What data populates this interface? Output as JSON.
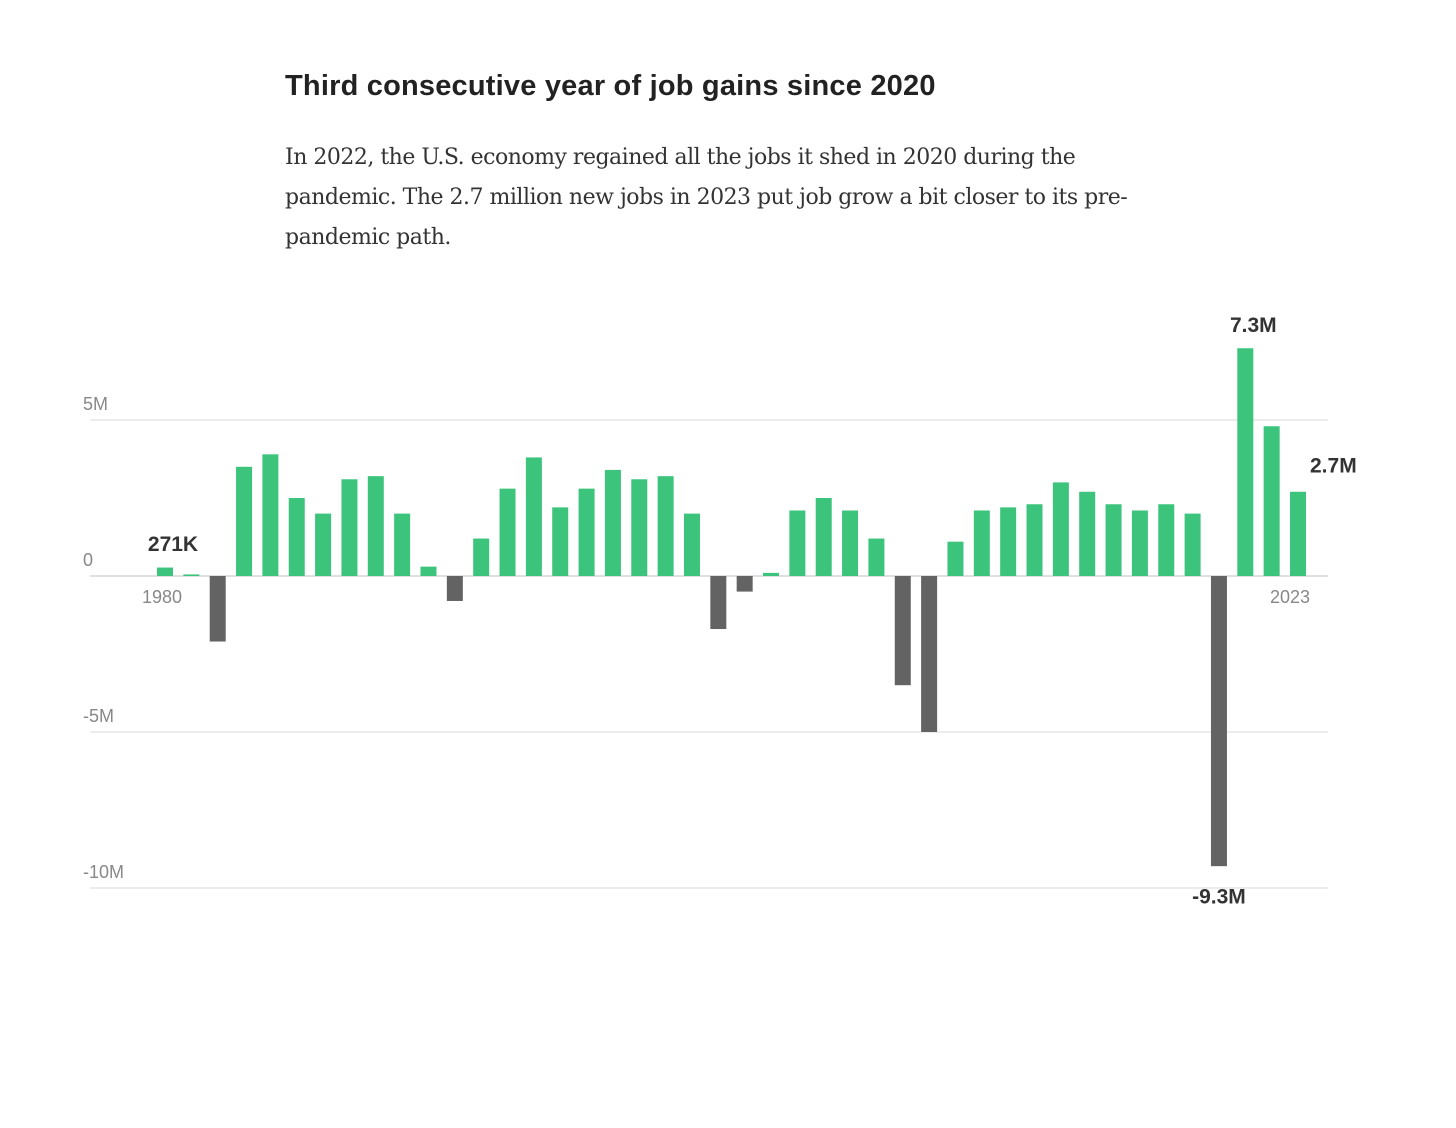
{
  "chart_data": {
    "type": "bar",
    "title": "Third consecutive year of job gains since 2020",
    "subtitle": "In 2022, the U.S. economy regained all the jobs it shed in 2020 during the pandemic. The 2.7 million new jobs in 2023 put job grow a bit closer to its pre-pandemic path.",
    "categories": [
      "1980",
      null,
      null,
      null,
      null,
      null,
      null,
      null,
      null,
      null,
      null,
      null,
      null,
      null,
      null,
      null,
      null,
      null,
      null,
      null,
      null,
      null,
      null,
      null,
      null,
      null,
      null,
      null,
      null,
      null,
      null,
      null,
      null,
      null,
      null,
      null,
      null,
      null,
      null,
      null,
      null,
      null,
      null,
      "2023"
    ],
    "values": [
      0.271,
      0.05,
      -2.1,
      3.5,
      3.9,
      2.5,
      2.0,
      3.1,
      3.2,
      2.0,
      0.3,
      -0.8,
      1.2,
      2.8,
      3.8,
      2.2,
      2.8,
      3.4,
      3.1,
      3.2,
      2.0,
      -1.7,
      -0.5,
      0.1,
      2.1,
      2.5,
      2.1,
      1.2,
      -3.5,
      -5.0,
      1.1,
      2.1,
      2.2,
      2.3,
      3.0,
      2.7,
      2.3,
      2.1,
      2.3,
      2.0,
      -9.3,
      7.3,
      4.8,
      2.7
    ],
    "value_labels": [
      "271K",
      null,
      null,
      null,
      null,
      null,
      null,
      null,
      null,
      null,
      null,
      null,
      null,
      null,
      null,
      null,
      null,
      null,
      null,
      null,
      null,
      null,
      null,
      null,
      null,
      null,
      null,
      null,
      null,
      null,
      null,
      null,
      null,
      null,
      null,
      null,
      null,
      null,
      null,
      null,
      "-9.3M",
      "7.3M",
      null,
      "2.7M"
    ],
    "positive_color": "#3cc47c",
    "negative_color": "#636363",
    "ylim": [
      -10,
      7.5
    ],
    "yticks": [
      {
        "value": -10,
        "label": "-10M"
      },
      {
        "value": -5,
        "label": "-5M"
      },
      0,
      {
        "value": 5,
        "label": "5M"
      }
    ],
    "grid": true
  }
}
